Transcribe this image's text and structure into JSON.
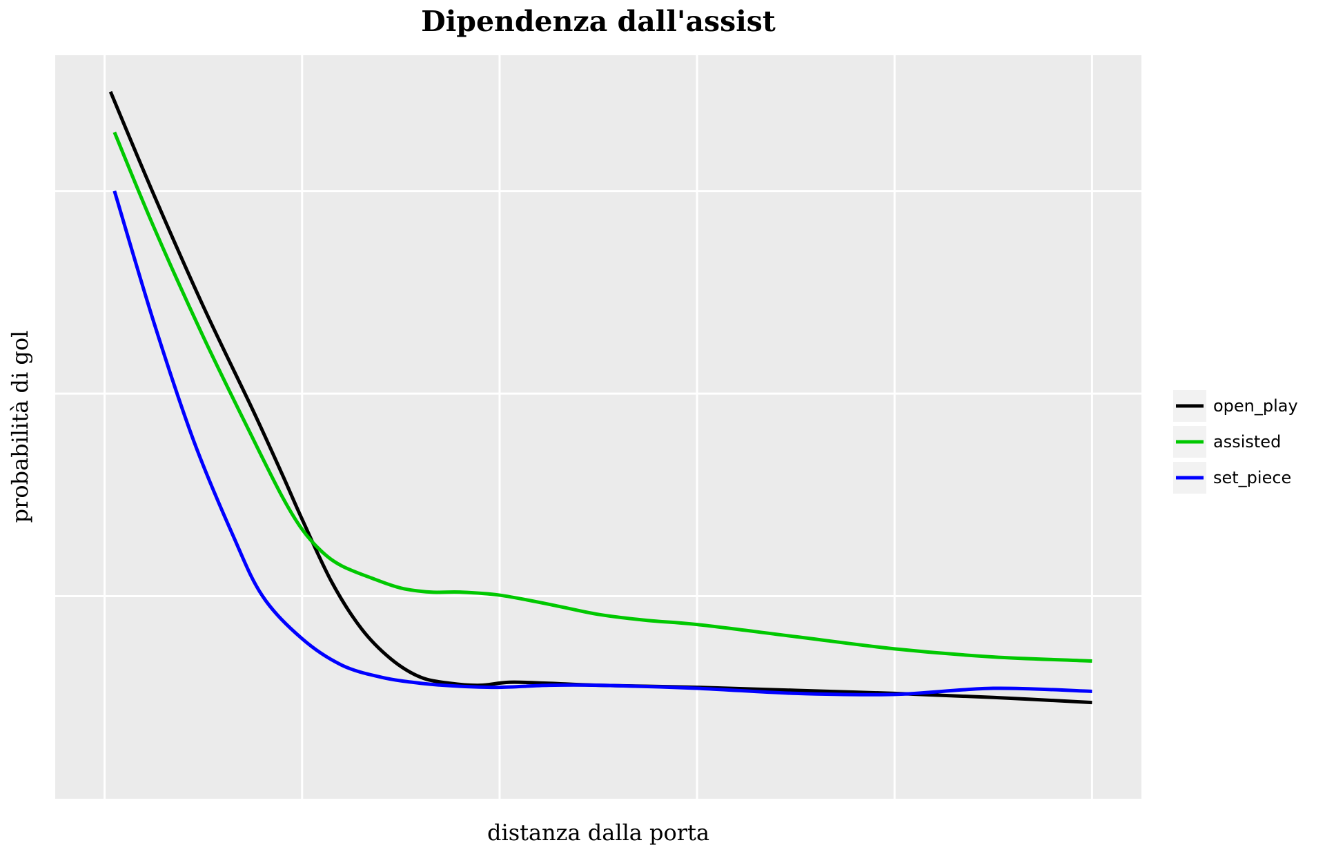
{
  "chart_data": {
    "type": "line",
    "title": "Dipendenza dall'assist",
    "xlabel": "distanza dalla porta",
    "ylabel": "probabilità di gol",
    "xlim": [
      -0.25,
      5.25
    ],
    "ylim": [
      0,
      3.67
    ],
    "x_gridlines": [
      0,
      1,
      2,
      3,
      4,
      5
    ],
    "y_gridlines": [
      1,
      2,
      3
    ],
    "grid": true,
    "tick_labels_shown": false,
    "background": "#ebebeb",
    "gridline_color": "#ffffff",
    "legend_position": "right",
    "series": [
      {
        "name": "open_play",
        "color": "#000000",
        "x": [
          0.03,
          0.25,
          0.5,
          0.75,
          0.9,
          1.0,
          1.15,
          1.3,
          1.45,
          1.6,
          1.75,
          1.9,
          2.05,
          2.25,
          2.5,
          3.0,
          3.5,
          4.0,
          4.5,
          5.0
        ],
        "y": [
          3.49,
          2.98,
          2.43,
          1.92,
          1.6,
          1.38,
          1.07,
          0.84,
          0.69,
          0.6,
          0.57,
          0.56,
          0.575,
          0.57,
          0.56,
          0.55,
          0.535,
          0.52,
          0.5,
          0.475
        ]
      },
      {
        "name": "assisted",
        "color": "#00c800",
        "x": [
          0.05,
          0.25,
          0.5,
          0.75,
          0.9,
          1.0,
          1.1,
          1.2,
          1.35,
          1.5,
          1.65,
          1.8,
          2.0,
          2.25,
          2.5,
          2.75,
          3.0,
          3.5,
          4.0,
          4.5,
          5.0
        ],
        "y": [
          3.29,
          2.82,
          2.28,
          1.78,
          1.49,
          1.33,
          1.22,
          1.15,
          1.09,
          1.04,
          1.02,
          1.02,
          1.005,
          0.96,
          0.91,
          0.88,
          0.86,
          0.8,
          0.74,
          0.7,
          0.68
        ]
      },
      {
        "name": "set_piece",
        "color": "#0000ff",
        "x": [
          0.05,
          0.25,
          0.45,
          0.65,
          0.8,
          1.0,
          1.2,
          1.4,
          1.6,
          1.8,
          2.0,
          2.25,
          2.5,
          3.0,
          3.5,
          4.0,
          4.5,
          5.0
        ],
        "y": [
          3.0,
          2.35,
          1.77,
          1.3,
          1.0,
          0.79,
          0.66,
          0.6,
          0.57,
          0.555,
          0.55,
          0.56,
          0.56,
          0.545,
          0.52,
          0.515,
          0.545,
          0.53
        ]
      }
    ]
  }
}
